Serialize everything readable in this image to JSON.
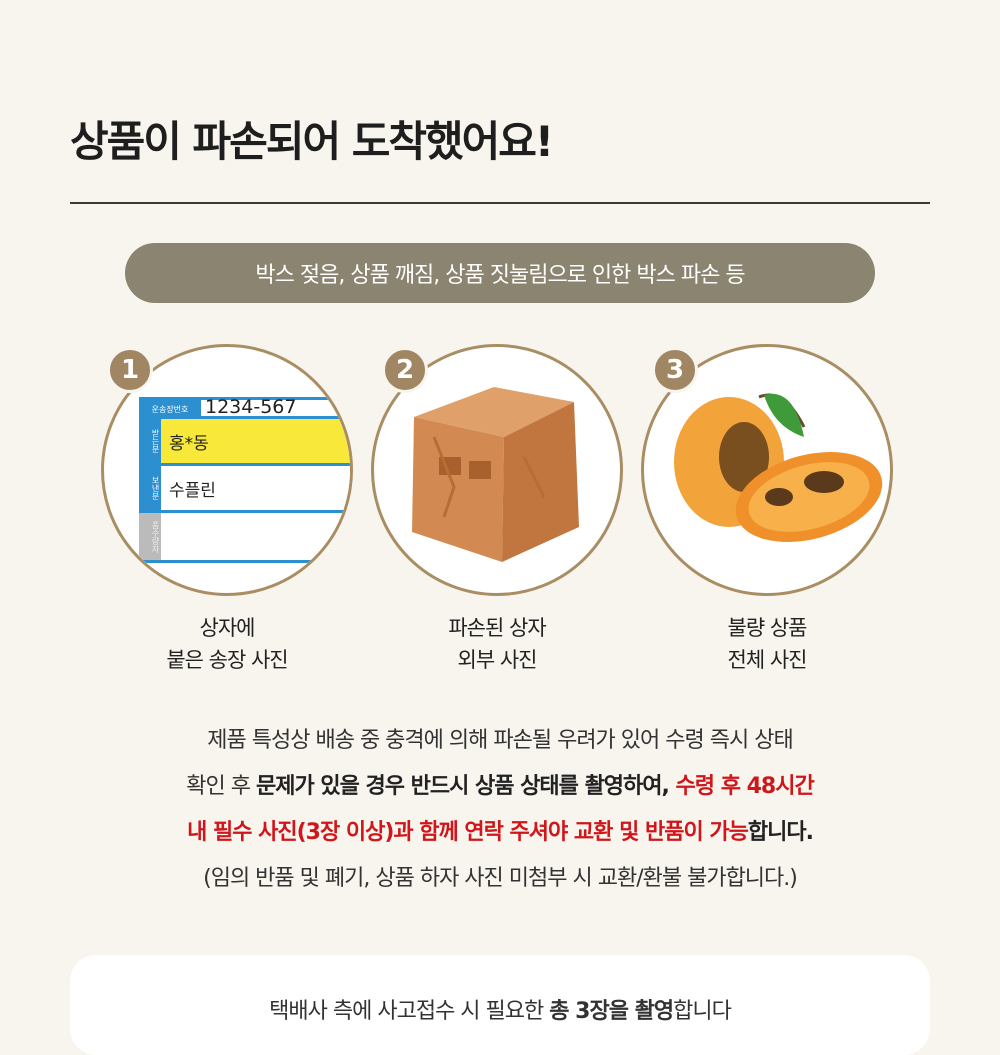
{
  "title": "상품이 파손되어 도착했어요!",
  "subtitle": "박스 젖음, 상품 깨짐, 상품 짓눌림으로 인한 박스 파손 등",
  "steps": [
    {
      "number": "1",
      "caption_line1": "상자에",
      "caption_line2": "붙은 송장 사진"
    },
    {
      "number": "2",
      "caption_line1": "파손된 상자",
      "caption_line2": "외부 사진"
    },
    {
      "number": "3",
      "caption_line1": "불량 상품",
      "caption_line2": "전체 사진"
    }
  ],
  "waybill": {
    "number_label": "운송장번호",
    "number": "1234-567",
    "receiver_label": "받는분",
    "receiver": "홍*동",
    "sender_label": "보낸분",
    "sender": "수플린",
    "extra_label": "품수량자"
  },
  "description": {
    "line1": "제품 특성상 배송 중 충격에 의해 파손될 우려가 있어 수령 즉시 상태",
    "line2_a": "확인 후 ",
    "line2_b": "문제가 있을 경우 반드시 상품 상태를 촬영하여,",
    "line2_c": " 수령 후 48시간",
    "line3_a": "내 필수 사진(3장 이상)과 함께 연락 주셔야 교환 및 반품이 가능",
    "line3_b": "합니다.",
    "line4": "(임의 반품 및 폐기, 상품 하자 사진 미첨부 시 교환/환불 불가합니다.)"
  },
  "card": {
    "text_a": "택배사 측에 사고접수 시 필요한 ",
    "text_b": "총 3장을 촬영",
    "text_c": "합니다"
  },
  "colors": {
    "accent": "#a08662",
    "pill": "#8a8470",
    "red": "#d0161b",
    "waybill_blue": "#2c8fd0",
    "highlight": "#f7e83a"
  }
}
